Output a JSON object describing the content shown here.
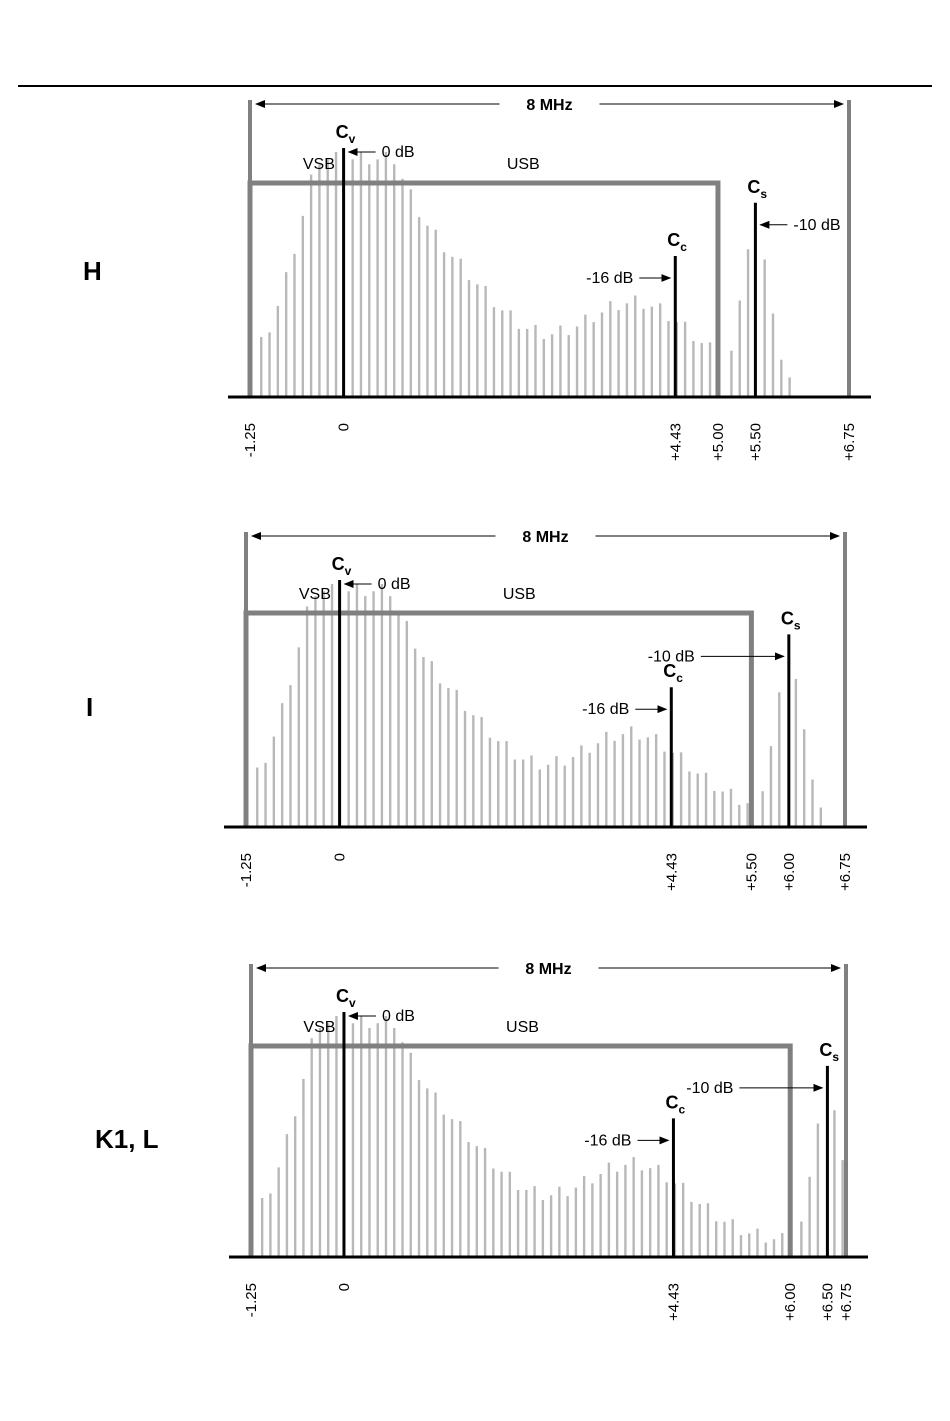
{
  "colors": {
    "ink": "#000000",
    "grey": "#808080",
    "light_grey": "#b8b8b8"
  },
  "chart_data": [
    {
      "type": "bar",
      "system": "H",
      "bandwidth_label": "8 MHz",
      "vsb_label": "VSB",
      "usb_label": "USB",
      "channel": [
        -1.25,
        6.75
      ],
      "passband_edge": 5.0,
      "ticks": [
        {
          "value": -1.25,
          "label": "-1.25"
        },
        {
          "value": 0,
          "label": "0"
        },
        {
          "value": 4.43,
          "label": "+4.43"
        },
        {
          "value": 5.0,
          "label": "+5.00"
        },
        {
          "value": 5.5,
          "label": "+5.50"
        },
        {
          "value": 6.75,
          "label": "+6.75"
        }
      ],
      "carriers": [
        {
          "symbol": "C",
          "sub": "v",
          "freq": 0,
          "level_db": "0 dB",
          "rel": 1.0,
          "side": "right"
        },
        {
          "symbol": "C",
          "sub": "c",
          "freq": 4.43,
          "level_db": "-16 dB",
          "rel": 0.6,
          "side": "left"
        },
        {
          "symbol": "C",
          "sub": "s",
          "freq": 5.5,
          "level_db": "-10 dB",
          "rel": 0.76,
          "side": "right"
        }
      ],
      "sound_spectrum": [
        5.18,
        6.0
      ]
    },
    {
      "type": "bar",
      "system": "I",
      "bandwidth_label": "8 MHz",
      "vsb_label": "VSB",
      "usb_label": "USB",
      "channel": [
        -1.25,
        6.75
      ],
      "passband_edge": 5.5,
      "ticks": [
        {
          "value": -1.25,
          "label": "-1.25"
        },
        {
          "value": 0,
          "label": "0"
        },
        {
          "value": 4.43,
          "label": "+4.43"
        },
        {
          "value": 5.5,
          "label": "+5.50"
        },
        {
          "value": 6.0,
          "label": "+6.00"
        },
        {
          "value": 6.75,
          "label": "+6.75"
        }
      ],
      "carriers": [
        {
          "symbol": "C",
          "sub": "v",
          "freq": 0,
          "level_db": "0 dB",
          "rel": 1.0,
          "side": "right"
        },
        {
          "symbol": "C",
          "sub": "c",
          "freq": 4.43,
          "level_db": "-16 dB",
          "rel": 0.6,
          "side": "left"
        },
        {
          "symbol": "C",
          "sub": "s",
          "freq": 6.0,
          "level_db": "-10 dB",
          "rel": 0.76,
          "side": "left"
        }
      ],
      "sound_spectrum": [
        5.65,
        6.45
      ]
    },
    {
      "type": "bar",
      "system": "K1, L",
      "bandwidth_label": "8 MHz",
      "vsb_label": "VSB",
      "usb_label": "USB",
      "channel": [
        -1.25,
        6.75
      ],
      "passband_edge": 6.0,
      "ticks": [
        {
          "value": -1.25,
          "label": "-1.25"
        },
        {
          "value": 0,
          "label": "0"
        },
        {
          "value": 4.43,
          "label": "+4.43"
        },
        {
          "value": 6.0,
          "label": "+6.00"
        },
        {
          "value": 6.5,
          "label": "+6.50"
        },
        {
          "value": 6.75,
          "label": "+6.75"
        }
      ],
      "carriers": [
        {
          "symbol": "C",
          "sub": "v",
          "freq": 0,
          "level_db": "0 dB",
          "rel": 1.0,
          "side": "right"
        },
        {
          "symbol": "C",
          "sub": "c",
          "freq": 4.43,
          "level_db": "-16 dB",
          "rel": 0.6,
          "side": "left"
        },
        {
          "symbol": "C",
          "sub": "s",
          "freq": 6.5,
          "level_db": "-10 dB",
          "rel": 0.76,
          "side": "left"
        }
      ],
      "sound_spectrum": [
        6.15,
        6.75
      ]
    }
  ]
}
